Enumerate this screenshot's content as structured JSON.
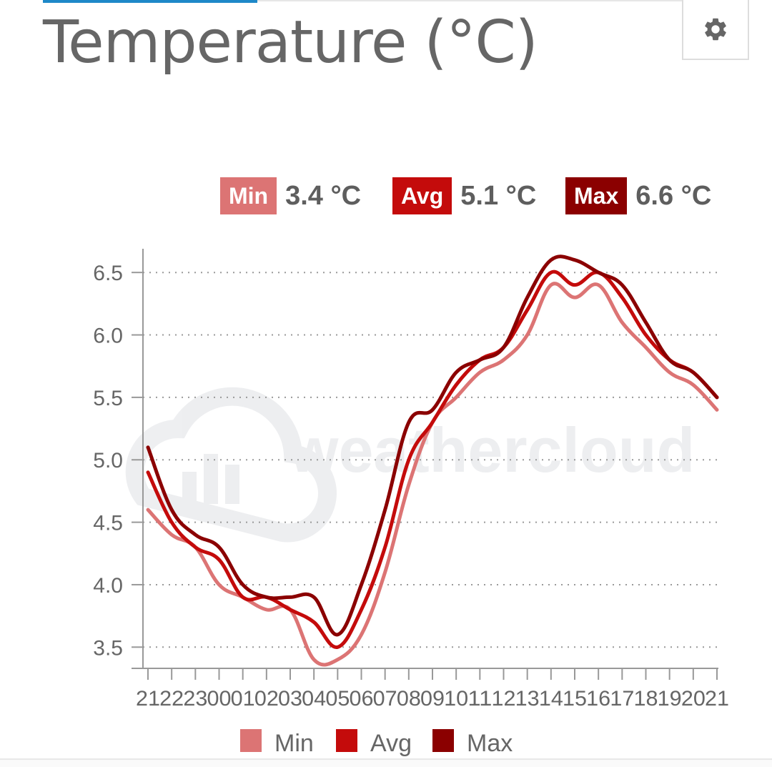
{
  "title": "Temperature (°C)",
  "settings_icon": "gear-icon",
  "summary": {
    "min": {
      "label": "Min",
      "value": "3.4 °C",
      "color": "#dc7474"
    },
    "avg": {
      "label": "Avg",
      "value": "5.1 °C",
      "color": "#c40b0b"
    },
    "max": {
      "label": "Max",
      "value": "6.6 °C",
      "color": "#8b0000"
    }
  },
  "watermark": "weathercloud",
  "chart_data": {
    "type": "line",
    "x": [
      "21",
      "22",
      "23",
      "00",
      "01",
      "02",
      "03",
      "04",
      "05",
      "06",
      "07",
      "08",
      "09",
      "10",
      "11",
      "12",
      "13",
      "14",
      "15",
      "16",
      "17",
      "18",
      "19",
      "20",
      "21"
    ],
    "xlabel": "",
    "ylabel": "",
    "ylim": [
      3.33,
      6.69
    ],
    "yticks": [
      "3.5",
      "4.0",
      "4.5",
      "5.0",
      "5.5",
      "6.0",
      "6.5"
    ],
    "grid": true,
    "legend": "bottom-center",
    "series": [
      {
        "name": "Min",
        "color": "#dc7474",
        "values": [
          4.6,
          4.4,
          4.3,
          4.0,
          3.9,
          3.8,
          3.8,
          3.4,
          3.4,
          3.6,
          4.1,
          4.8,
          5.3,
          5.5,
          5.7,
          5.8,
          6.0,
          6.4,
          6.3,
          6.4,
          6.1,
          5.9,
          5.7,
          5.6,
          5.4
        ]
      },
      {
        "name": "Avg",
        "color": "#c40b0b",
        "values": [
          4.9,
          4.5,
          4.3,
          4.2,
          3.9,
          3.9,
          3.8,
          3.7,
          3.5,
          3.8,
          4.3,
          5.0,
          5.3,
          5.6,
          5.8,
          5.9,
          6.2,
          6.5,
          6.4,
          6.5,
          6.3,
          6.0,
          5.8,
          5.7,
          5.5
        ]
      },
      {
        "name": "Max",
        "color": "#8b0000",
        "values": [
          5.1,
          4.6,
          4.4,
          4.3,
          4.0,
          3.9,
          3.9,
          3.9,
          3.6,
          4.0,
          4.6,
          5.3,
          5.4,
          5.7,
          5.8,
          5.9,
          6.3,
          6.6,
          6.6,
          6.5,
          6.4,
          6.1,
          5.8,
          5.7,
          5.5
        ]
      }
    ]
  }
}
